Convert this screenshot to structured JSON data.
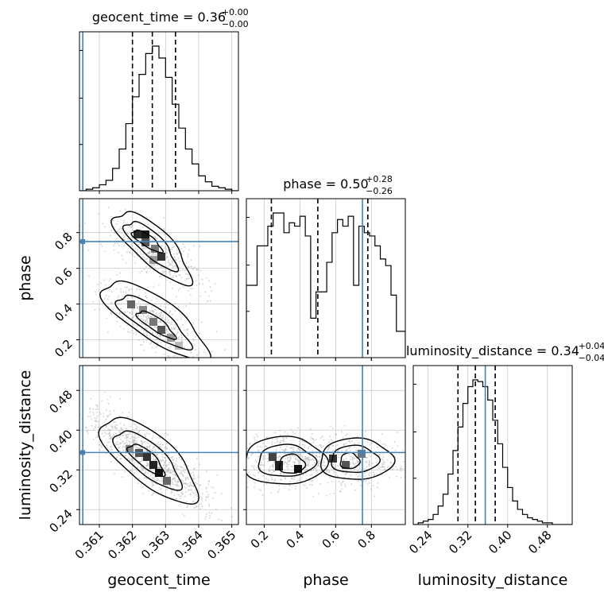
{
  "chart_data": {
    "type": "corner",
    "parameters": [
      "geocent_time",
      "phase",
      "luminosity_distance"
    ],
    "truth_color": "#4682b4",
    "truths": {
      "geocent_time": 0.3605,
      "phase": 0.75,
      "luminosity_distance": 0.355
    },
    "ranges": {
      "geocent_time": [
        0.3604,
        0.3652
      ],
      "phase": [
        0.1,
        0.99
      ],
      "luminosity_distance": [
        0.21,
        0.53
      ]
    },
    "ticks": {
      "geocent_time": [
        "0.361",
        "0.362",
        "0.363",
        "0.364",
        "0.365"
      ],
      "phase": [
        "0.2",
        "0.4",
        "0.6",
        "0.8"
      ],
      "luminosity_distance": [
        "0.24",
        "0.32",
        "0.40",
        "0.48"
      ]
    },
    "diagonal_panels": [
      {
        "parameter": "geocent_time",
        "title": {
          "main": "geocent_time = 0.36",
          "sup": "+0.00",
          "sub": "−0.00"
        },
        "quantiles": [
          0.362,
          0.3626,
          0.3633
        ],
        "bin_edges": [
          0.3604,
          0.3606,
          0.3608,
          0.361,
          0.3612,
          0.3614,
          0.3616,
          0.3618,
          0.362,
          0.3622,
          0.3624,
          0.3626,
          0.3628,
          0.363,
          0.3632,
          0.3634,
          0.3636,
          0.3638,
          0.364,
          0.3642,
          0.3644,
          0.3646,
          0.3648,
          0.365,
          0.3652
        ],
        "counts": [
          0,
          1,
          2,
          4,
          7,
          15,
          28,
          45,
          63,
          78,
          92,
          97,
          89,
          76,
          58,
          42,
          28,
          18,
          10,
          6,
          3,
          2,
          1,
          0
        ]
      },
      {
        "parameter": "phase",
        "title": {
          "main": "phase = 0.50",
          "sup": "+0.28",
          "sub": "−0.26"
        },
        "quantiles": [
          0.24,
          0.5,
          0.78
        ],
        "bin_edges": [
          0.1,
          0.13,
          0.16,
          0.19,
          0.22,
          0.25,
          0.28,
          0.31,
          0.34,
          0.37,
          0.4,
          0.43,
          0.46,
          0.49,
          0.52,
          0.55,
          0.58,
          0.61,
          0.64,
          0.67,
          0.7,
          0.73,
          0.76,
          0.79,
          0.82,
          0.85,
          0.88,
          0.91,
          0.94,
          0.97,
          0.99
        ],
        "counts": [
          44,
          44,
          68,
          68,
          80,
          88,
          88,
          76,
          82,
          80,
          86,
          74,
          24,
          40,
          40,
          58,
          76,
          84,
          80,
          86,
          44,
          80,
          76,
          74,
          68,
          60,
          56,
          38,
          16,
          16
        ]
      },
      {
        "parameter": "luminosity_distance",
        "title": {
          "main": "luminosity_distance = 0.34",
          "sup": "+0.04",
          "sub": "−0.04"
        },
        "quantiles": [
          0.3,
          0.335,
          0.375
        ],
        "bin_edges": [
          0.21,
          0.22,
          0.23,
          0.24,
          0.25,
          0.26,
          0.27,
          0.28,
          0.29,
          0.3,
          0.31,
          0.32,
          0.33,
          0.34,
          0.35,
          0.36,
          0.37,
          0.38,
          0.39,
          0.4,
          0.41,
          0.42,
          0.43,
          0.44,
          0.45,
          0.46,
          0.47,
          0.48,
          0.49,
          0.5,
          0.51,
          0.52,
          0.53
        ],
        "counts": [
          0,
          1,
          2,
          3,
          6,
          11,
          18,
          30,
          44,
          58,
          72,
          82,
          86,
          85,
          82,
          74,
          62,
          48,
          34,
          22,
          14,
          9,
          6,
          4,
          3,
          2,
          1,
          1,
          0,
          0,
          0,
          0
        ]
      }
    ],
    "off_diagonal_panels": [
      {
        "x": "geocent_time",
        "y": "phase"
      },
      {
        "x": "geocent_time",
        "y": "luminosity_distance"
      },
      {
        "x": "phase",
        "y": "luminosity_distance"
      }
    ]
  }
}
